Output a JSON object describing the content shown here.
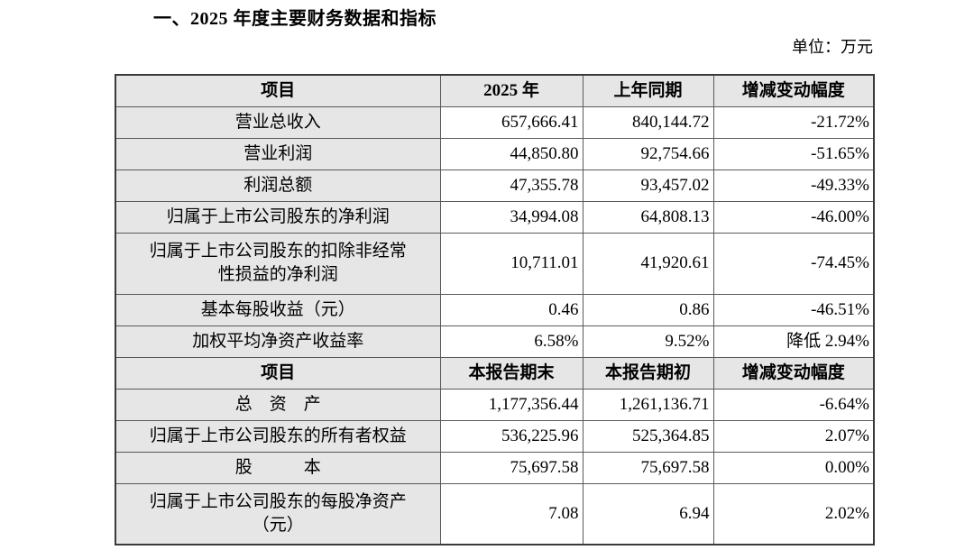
{
  "page": {
    "title": "一、2025 年度主要财务数据和指标",
    "unit_label": "单位：万元"
  },
  "colors": {
    "header_bg": "#e6e6e6",
    "item_bg": "#e6e6e6",
    "border_inner": "#595959",
    "border_outer": "#3a3a3a",
    "text": "#000000"
  },
  "table": {
    "sections": [
      {
        "header": [
          "项目",
          "2025 年",
          "上年同期",
          "增减变动幅度"
        ],
        "rows": [
          {
            "item": "营业总收入",
            "current": "657,666.41",
            "prior": "840,144.72",
            "change": "-21.72%",
            "tall": false
          },
          {
            "item": "营业利润",
            "current": "44,850.80",
            "prior": "92,754.66",
            "change": "-51.65%",
            "tall": false
          },
          {
            "item": "利润总额",
            "current": "47,355.78",
            "prior": "93,457.02",
            "change": "-49.33%",
            "tall": false
          },
          {
            "item": "归属于上市公司股东的净利润",
            "current": "34,994.08",
            "prior": "64,808.13",
            "change": "-46.00%",
            "tall": false
          },
          {
            "item": "归属于上市公司股东的扣除非经常\n性损益的净利润",
            "current": "10,711.01",
            "prior": "41,920.61",
            "change": "-74.45%",
            "tall": true
          },
          {
            "item": "基本每股收益（元）",
            "current": "0.46",
            "prior": "0.86",
            "change": "-46.51%",
            "tall": false
          },
          {
            "item": "加权平均净资产收益率",
            "current": "6.58%",
            "prior": "9.52%",
            "change": "降低 2.94%",
            "tall": false
          }
        ]
      },
      {
        "header": [
          "项目",
          "本报告期末",
          "本报告期初",
          "增减变动幅度"
        ],
        "rows": [
          {
            "item": "总　资　产",
            "current": "1,177,356.44",
            "prior": "1,261,136.71",
            "change": "-6.64%",
            "tall": false
          },
          {
            "item": "归属于上市公司股东的所有者权益",
            "current": "536,225.96",
            "prior": "525,364.85",
            "change": "2.07%",
            "tall": false
          },
          {
            "item": "股　　　本",
            "current": "75,697.58",
            "prior": "75,697.58",
            "change": "0.00%",
            "tall": false
          },
          {
            "item": "归属于上市公司股东的每股净资产\n（元）",
            "current": "7.08",
            "prior": "6.94",
            "change": "2.02%",
            "tall": true
          }
        ]
      }
    ]
  }
}
